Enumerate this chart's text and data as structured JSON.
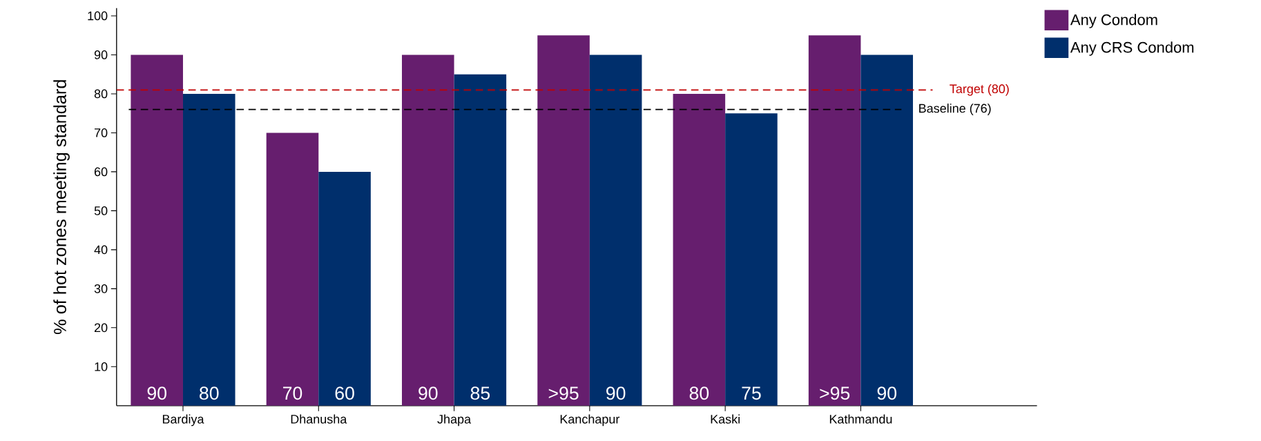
{
  "chart_data": {
    "type": "bar",
    "ylabel": "% of hot zones meeting standard",
    "categories": [
      "Bardiya",
      "Dhanusha",
      "Jhapa",
      "Kanchapur",
      "Kaski",
      "Kathmandu"
    ],
    "series": [
      {
        "name": "Any Condom",
        "color": "#661e6e",
        "values": [
          90,
          70,
          90,
          95,
          80,
          95
        ],
        "value_labels": [
          "90",
          "70",
          "90",
          ">95",
          "80",
          ">95"
        ]
      },
      {
        "name": "Any CRS Condom",
        "color": "#002f6c",
        "values": [
          80,
          60,
          85,
          90,
          75,
          90
        ],
        "value_labels": [
          "80",
          "60",
          "85",
          "90",
          "75",
          "90"
        ]
      }
    ],
    "ylim": [
      0,
      102
    ],
    "yticks": [
      10,
      20,
      30,
      40,
      50,
      60,
      70,
      80,
      90,
      100
    ],
    "ref_lines": [
      {
        "axis": "y",
        "value": 81,
        "label": "Target (80)",
        "color": "#c00000",
        "line_style": "dashed"
      },
      {
        "axis": "y",
        "value": 76,
        "label": "Baseline (76)",
        "color": "#000000",
        "line_style": "dashed"
      }
    ],
    "grid": false,
    "legend": "top right"
  }
}
